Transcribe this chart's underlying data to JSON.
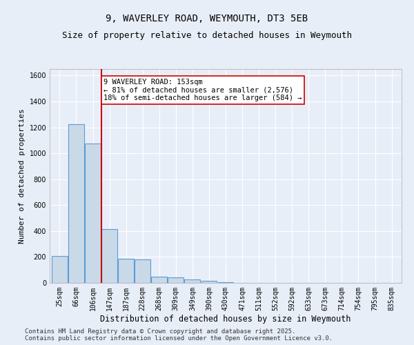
{
  "title_line1": "9, WAVERLEY ROAD, WEYMOUTH, DT3 5EB",
  "title_line2": "Size of property relative to detached houses in Weymouth",
  "xlabel": "Distribution of detached houses by size in Weymouth",
  "ylabel": "Number of detached properties",
  "categories": [
    "25sqm",
    "66sqm",
    "106sqm",
    "147sqm",
    "187sqm",
    "228sqm",
    "268sqm",
    "309sqm",
    "349sqm",
    "390sqm",
    "430sqm",
    "471sqm",
    "511sqm",
    "552sqm",
    "592sqm",
    "633sqm",
    "673sqm",
    "714sqm",
    "754sqm",
    "795sqm",
    "835sqm"
  ],
  "values": [
    205,
    1225,
    1075,
    415,
    185,
    180,
    50,
    40,
    25,
    15,
    5,
    0,
    0,
    0,
    0,
    0,
    0,
    0,
    0,
    0,
    0
  ],
  "bar_color": "#c9d9e8",
  "bar_edge_color": "#5b9bd5",
  "bar_edge_width": 0.8,
  "red_line_x": 2.5,
  "red_line_color": "#cc0000",
  "annotation_text": "9 WAVERLEY ROAD: 153sqm\n← 81% of detached houses are smaller (2,576)\n18% of semi-detached houses are larger (584) →",
  "annotation_box_color": "#ffffff",
  "annotation_box_edge": "#cc0000",
  "ylim": [
    0,
    1650
  ],
  "yticks": [
    0,
    200,
    400,
    600,
    800,
    1000,
    1200,
    1400,
    1600
  ],
  "background_color": "#e8eef8",
  "grid_color": "#ffffff",
  "footer_line1": "Contains HM Land Registry data © Crown copyright and database right 2025.",
  "footer_line2": "Contains public sector information licensed under the Open Government Licence v3.0.",
  "title_fontsize": 10,
  "subtitle_fontsize": 9,
  "tick_fontsize": 7,
  "xlabel_fontsize": 8.5,
  "ylabel_fontsize": 8,
  "footer_fontsize": 6.5,
  "annotation_fontsize": 7.5
}
